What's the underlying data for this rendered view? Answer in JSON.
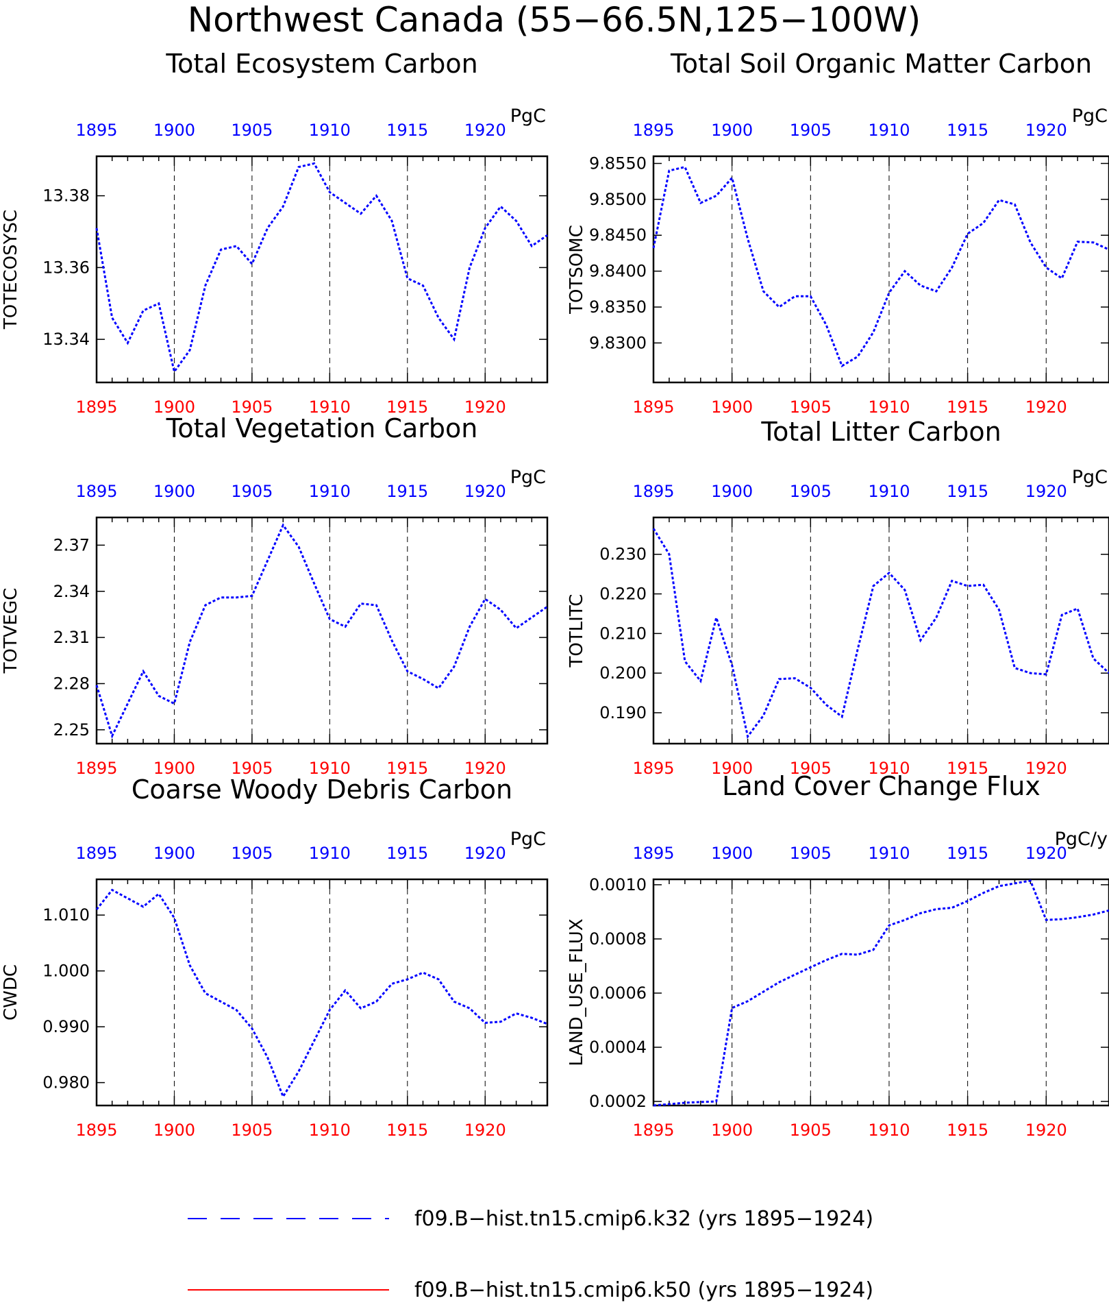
{
  "title": "Northwest Canada (55−66.5N,125−100W)",
  "colors": {
    "series_k32": "#0000ff",
    "series_k50": "#ff0000",
    "top_ticks": "#0000ff",
    "bottom_ticks": "#ff0000",
    "axis": "#000000",
    "grid": "#000000"
  },
  "legend": [
    {
      "label": "f09.B−hist.tn15.cmip6.k32 (yrs 1895−1924)",
      "style": "dashed",
      "color": "#0000ff"
    },
    {
      "label": "f09.B−hist.tn15.cmip6.k50 (yrs 1895−1924)",
      "style": "solid",
      "color": "#ff0000"
    }
  ],
  "chart_data": [
    {
      "type": "line",
      "title": "Total Ecosystem Carbon",
      "ylabel": "TOTECOSYSC",
      "units": "PgC",
      "xlim": [
        1895,
        1924
      ],
      "ylim": [
        13.328,
        13.391
      ],
      "xticks": [
        "1895",
        "1900",
        "1905",
        "1910",
        "1915",
        "1920"
      ],
      "yticks": [
        "13.34",
        "13.36",
        "13.38"
      ],
      "grid": "vertical dashed at x ticks",
      "series": [
        {
          "name": "",
          "x": [
            1895,
            1896,
            1897,
            1898,
            1899,
            1900,
            1901,
            1902,
            1903,
            1904,
            1905,
            1906,
            1907,
            1908,
            1909,
            1910,
            1911,
            1912,
            1913,
            1914,
            1915,
            1916,
            1917,
            1918,
            1919,
            1920,
            1921,
            1922,
            1923,
            1924
          ],
          "y": [
            13.371,
            13.346,
            13.339,
            13.348,
            13.35,
            13.331,
            13.337,
            13.355,
            13.365,
            13.366,
            13.361,
            13.371,
            13.377,
            13.388,
            13.389,
            13.381,
            13.378,
            13.375,
            13.38,
            13.373,
            13.357,
            13.355,
            13.346,
            13.34,
            13.36,
            13.371,
            13.377,
            13.373,
            13.366,
            13.369
          ]
        }
      ]
    },
    {
      "type": "line",
      "title": "Total Soil Organic Matter Carbon",
      "ylabel": "TOTSOMC",
      "units": "PgC",
      "xlim": [
        1895,
        1924
      ],
      "ylim": [
        9.8245,
        9.856
      ],
      "xticks": [
        "1895",
        "1900",
        "1905",
        "1910",
        "1915",
        "1920"
      ],
      "yticks": [
        "9.8300",
        "9.8350",
        "9.8400",
        "9.8450",
        "9.8500",
        "9.8550"
      ],
      "grid": "vertical dashed at x ticks",
      "series": [
        {
          "name": "",
          "x": [
            1895,
            1896,
            1897,
            1898,
            1899,
            1900,
            1901,
            1902,
            1903,
            1904,
            1905,
            1906,
            1907,
            1908,
            1909,
            1910,
            1911,
            1912,
            1913,
            1914,
            1915,
            1916,
            1917,
            1918,
            1919,
            1920,
            1921,
            1922,
            1923,
            1924
          ],
          "y": [
            9.8432,
            9.854,
            9.8545,
            9.8495,
            9.8505,
            9.853,
            9.8445,
            9.8372,
            9.835,
            9.8365,
            9.8365,
            9.8325,
            9.8268,
            9.8281,
            9.8315,
            9.837,
            9.84,
            9.838,
            9.8372,
            9.8405,
            9.8452,
            9.8467,
            9.8499,
            9.8493,
            9.844,
            9.8405,
            9.839,
            9.8441,
            9.844,
            9.843
          ]
        }
      ]
    },
    {
      "type": "line",
      "title": "Total Vegetation Carbon",
      "ylabel": "TOTVEGC",
      "units": "PgC",
      "xlim": [
        1895,
        1924
      ],
      "ylim": [
        2.241,
        2.388
      ],
      "xticks": [
        "1895",
        "1900",
        "1905",
        "1910",
        "1915",
        "1920"
      ],
      "yticks": [
        "2.25",
        "2.28",
        "2.31",
        "2.34",
        "2.37"
      ],
      "grid": "vertical dashed at x ticks",
      "series": [
        {
          "name": "",
          "x": [
            1895,
            1896,
            1897,
            1898,
            1899,
            1900,
            1901,
            1902,
            1903,
            1904,
            1905,
            1906,
            1907,
            1908,
            1909,
            1910,
            1911,
            1912,
            1913,
            1914,
            1915,
            1916,
            1917,
            1918,
            1919,
            1920,
            1921,
            1922,
            1923,
            1924
          ],
          "y": [
            2.279,
            2.246,
            2.267,
            2.288,
            2.272,
            2.267,
            2.307,
            2.331,
            2.336,
            2.336,
            2.337,
            2.36,
            2.383,
            2.369,
            2.345,
            2.322,
            2.317,
            2.332,
            2.331,
            2.308,
            2.288,
            2.283,
            2.277,
            2.291,
            2.317,
            2.335,
            2.328,
            2.316,
            2.323,
            2.33
          ]
        }
      ]
    },
    {
      "type": "line",
      "title": "Total Litter Carbon",
      "ylabel": "TOTLITC",
      "units": "PgC",
      "xlim": [
        1895,
        1924
      ],
      "ylim": [
        0.1822,
        0.2393
      ],
      "xticks": [
        "1895",
        "1900",
        "1905",
        "1910",
        "1915",
        "1920"
      ],
      "yticks": [
        "0.190",
        "0.200",
        "0.210",
        "0.220",
        "0.230"
      ],
      "grid": "vertical dashed at x ticks",
      "series": [
        {
          "name": "",
          "x": [
            1895,
            1896,
            1897,
            1898,
            1899,
            1900,
            1901,
            1902,
            1903,
            1904,
            1905,
            1906,
            1907,
            1908,
            1909,
            1910,
            1911,
            1912,
            1913,
            1914,
            1915,
            1916,
            1917,
            1918,
            1919,
            1920,
            1921,
            1922,
            1923,
            1924
          ],
          "y": [
            0.2365,
            0.23,
            0.203,
            0.198,
            0.214,
            0.202,
            0.184,
            0.1893,
            0.1985,
            0.1987,
            0.1963,
            0.192,
            0.189,
            0.206,
            0.222,
            0.2253,
            0.221,
            0.2083,
            0.214,
            0.2233,
            0.222,
            0.2223,
            0.216,
            0.2013,
            0.2,
            0.1997,
            0.2147,
            0.2163,
            0.2037,
            0.2
          ]
        }
      ]
    },
    {
      "type": "line",
      "title": "Coarse Woody Debris Carbon",
      "ylabel": "CWDC",
      "units": "PgC",
      "xlim": [
        1895,
        1924
      ],
      "ylim": [
        0.9759,
        1.0164
      ],
      "xticks": [
        "1895",
        "1900",
        "1905",
        "1910",
        "1915",
        "1920"
      ],
      "yticks": [
        "0.980",
        "0.990",
        "1.000",
        "1.010"
      ],
      "grid": "vertical dashed at x ticks",
      "series": [
        {
          "name": "",
          "x": [
            1895,
            1896,
            1897,
            1898,
            1899,
            1900,
            1901,
            1902,
            1903,
            1904,
            1905,
            1906,
            1907,
            1908,
            1909,
            1910,
            1911,
            1912,
            1913,
            1914,
            1915,
            1916,
            1917,
            1918,
            1919,
            1920,
            1921,
            1922,
            1923,
            1924
          ],
          "y": [
            1.011,
            1.0145,
            1.013,
            1.0115,
            1.0138,
            1.0095,
            1.001,
            0.996,
            0.9945,
            0.993,
            0.9897,
            0.9845,
            0.9775,
            0.982,
            0.9875,
            0.993,
            0.9965,
            0.9933,
            0.9945,
            0.9977,
            0.9985,
            0.9997,
            0.9985,
            0.9945,
            0.9933,
            0.9907,
            0.9909,
            0.9924,
            0.9916,
            0.9905
          ]
        }
      ]
    },
    {
      "type": "line",
      "title": "Land Cover Change Flux",
      "ylabel": "LAND_USE_FLUX",
      "units": "PgC/y",
      "xlim": [
        1895,
        1924
      ],
      "ylim": [
        0.000185,
        0.00102
      ],
      "xticks": [
        "1895",
        "1900",
        "1905",
        "1910",
        "1915",
        "1920"
      ],
      "yticks": [
        "0.0002",
        "0.0004",
        "0.0006",
        "0.0008",
        "0.0010"
      ],
      "grid": "vertical dashed at x ticks",
      "series": [
        {
          "name": "",
          "x": [
            1895,
            1896,
            1897,
            1898,
            1899,
            1900,
            1901,
            1902,
            1903,
            1904,
            1905,
            1906,
            1907,
            1908,
            1909,
            1910,
            1911,
            1912,
            1913,
            1914,
            1915,
            1916,
            1917,
            1918,
            1919,
            1920,
            1921,
            1922,
            1923,
            1924
          ],
          "y": [
            0.000185,
            0.00019,
            0.000195,
            0.000198,
            0.0002,
            0.000545,
            0.00057,
            0.000605,
            0.00064,
            0.000668,
            0.000695,
            0.000722,
            0.000745,
            0.000742,
            0.00076,
            0.00085,
            0.00087,
            0.000895,
            0.00091,
            0.000915,
            0.00094,
            0.00097,
            0.000995,
            0.001005,
            0.001015,
            0.00087,
            0.000873,
            0.00088,
            0.00089,
            0.000905
          ]
        }
      ]
    }
  ]
}
